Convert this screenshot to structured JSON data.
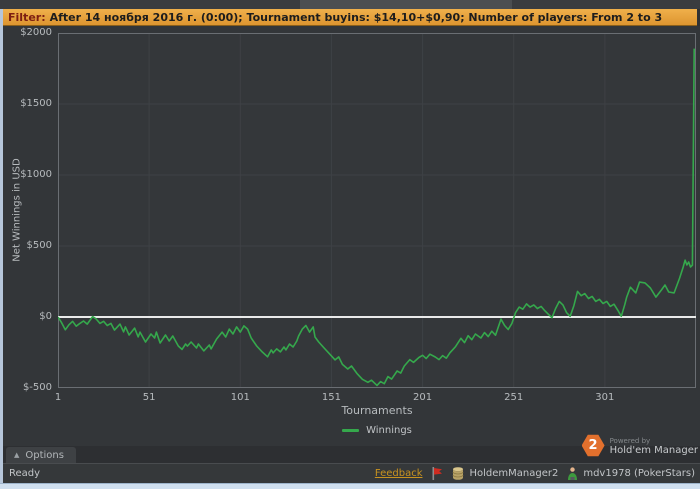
{
  "window": {
    "filter_bar": {
      "label": "Filter:",
      "text": "After 14 ноября 2016 г. (0:00); Tournament buyins: $14,10+$0,90; Number of players: From 2 to 3"
    },
    "options_button": {
      "label": "Options",
      "icon": "chevron-up-icon"
    },
    "powered_by": {
      "line1": "Powered by",
      "line2": "Hold'em Manager",
      "badge": "2",
      "badge_color": "#E2702D"
    },
    "status_bar": {
      "ready": "Ready",
      "feedback_link": "Feedback",
      "feedback_color": "#C9931F",
      "account_icon": "database-icon",
      "account": "HoldemManager2",
      "flag_icon": "red-flag-icon",
      "user_icon": "user-icon",
      "user": "mdv1978 (PokerStars)"
    }
  },
  "chart_data": {
    "type": "line",
    "title": "",
    "xlabel": "Tournaments",
    "ylabel": "Net Winnings in USD",
    "xlim": [
      1,
      351
    ],
    "ylim": [
      -500,
      2000
    ],
    "x_ticks": [
      1,
      51,
      101,
      151,
      201,
      251,
      301
    ],
    "y_ticks": [
      2000,
      1500,
      1000,
      500,
      0,
      -500
    ],
    "y_tick_labels": [
      "$2000",
      "$1500",
      "$1000",
      "$500",
      "$0",
      "$-500"
    ],
    "grid": true,
    "zero_line_color": "#E9EAEA",
    "grid_color": "#3E4145",
    "border_color": "#6A6E73",
    "plot_bg": "#34373A",
    "line_color": "#35A84C",
    "legend_position": "bottom",
    "series": [
      {
        "name": "Winnings",
        "points": [
          [
            1,
            0
          ],
          [
            3,
            -40
          ],
          [
            5,
            -90
          ],
          [
            7,
            -55
          ],
          [
            9,
            -30
          ],
          [
            11,
            -65
          ],
          [
            13,
            -45
          ],
          [
            15,
            -28
          ],
          [
            17,
            -50
          ],
          [
            20,
            3
          ],
          [
            22,
            -15
          ],
          [
            24,
            -45
          ],
          [
            26,
            -30
          ],
          [
            28,
            -60
          ],
          [
            30,
            -45
          ],
          [
            32,
            -92
          ],
          [
            35,
            -50
          ],
          [
            37,
            -105
          ],
          [
            38,
            -70
          ],
          [
            40,
            -127
          ],
          [
            43,
            -78
          ],
          [
            45,
            -140
          ],
          [
            46,
            -106
          ],
          [
            49,
            -176
          ],
          [
            52,
            -120
          ],
          [
            54,
            -148
          ],
          [
            55,
            -106
          ],
          [
            57,
            -183
          ],
          [
            60,
            -127
          ],
          [
            62,
            -169
          ],
          [
            64,
            -134
          ],
          [
            67,
            -204
          ],
          [
            69,
            -228
          ],
          [
            71,
            -190
          ],
          [
            72,
            -205
          ],
          [
            74,
            -176
          ],
          [
            77,
            -218
          ],
          [
            78,
            -190
          ],
          [
            81,
            -239
          ],
          [
            84,
            -197
          ],
          [
            85,
            -225
          ],
          [
            88,
            -155
          ],
          [
            91,
            -106
          ],
          [
            93,
            -141
          ],
          [
            95,
            -85
          ],
          [
            97,
            -120
          ],
          [
            99,
            -70
          ],
          [
            101,
            -106
          ],
          [
            103,
            -63
          ],
          [
            105,
            -85
          ],
          [
            107,
            -148
          ],
          [
            110,
            -204
          ],
          [
            113,
            -246
          ],
          [
            116,
            -280
          ],
          [
            118,
            -232
          ],
          [
            119,
            -253
          ],
          [
            121,
            -225
          ],
          [
            123,
            -246
          ],
          [
            125,
            -211
          ],
          [
            126,
            -232
          ],
          [
            128,
            -190
          ],
          [
            130,
            -211
          ],
          [
            132,
            -169
          ],
          [
            133,
            -134
          ],
          [
            135,
            -85
          ],
          [
            137,
            -60
          ],
          [
            139,
            -106
          ],
          [
            141,
            -70
          ],
          [
            142,
            -141
          ],
          [
            144,
            -176
          ],
          [
            147,
            -218
          ],
          [
            150,
            -260
          ],
          [
            153,
            -302
          ],
          [
            155,
            -281
          ],
          [
            157,
            -334
          ],
          [
            160,
            -366
          ],
          [
            162,
            -345
          ],
          [
            165,
            -397
          ],
          [
            168,
            -439
          ],
          [
            171,
            -460
          ],
          [
            173,
            -445
          ],
          [
            176,
            -482
          ],
          [
            178,
            -455
          ],
          [
            180,
            -470
          ],
          [
            182,
            -420
          ],
          [
            184,
            -437
          ],
          [
            187,
            -380
          ],
          [
            189,
            -395
          ],
          [
            191,
            -345
          ],
          [
            194,
            -300
          ],
          [
            196,
            -320
          ],
          [
            199,
            -285
          ],
          [
            201,
            -270
          ],
          [
            203,
            -292
          ],
          [
            205,
            -262
          ],
          [
            208,
            -282
          ],
          [
            210,
            -300
          ],
          [
            212,
            -272
          ],
          [
            214,
            -290
          ],
          [
            216,
            -252
          ],
          [
            219,
            -210
          ],
          [
            222,
            -150
          ],
          [
            224,
            -180
          ],
          [
            226,
            -132
          ],
          [
            228,
            -160
          ],
          [
            230,
            -120
          ],
          [
            233,
            -148
          ],
          [
            235,
            -110
          ],
          [
            237,
            -138
          ],
          [
            239,
            -100
          ],
          [
            241,
            -128
          ],
          [
            244,
            -15
          ],
          [
            246,
            -60
          ],
          [
            248,
            -88
          ],
          [
            250,
            -45
          ],
          [
            252,
            30
          ],
          [
            254,
            70
          ],
          [
            256,
            55
          ],
          [
            258,
            92
          ],
          [
            260,
            70
          ],
          [
            262,
            85
          ],
          [
            264,
            60
          ],
          [
            266,
            75
          ],
          [
            268,
            45
          ],
          [
            270,
            20
          ],
          [
            272,
            -5
          ],
          [
            274,
            60
          ],
          [
            276,
            110
          ],
          [
            278,
            85
          ],
          [
            280,
            30
          ],
          [
            282,
            5
          ],
          [
            284,
            80
          ],
          [
            286,
            180
          ],
          [
            288,
            150
          ],
          [
            290,
            165
          ],
          [
            292,
            130
          ],
          [
            294,
            145
          ],
          [
            296,
            110
          ],
          [
            298,
            125
          ],
          [
            300,
            95
          ],
          [
            302,
            110
          ],
          [
            304,
            75
          ],
          [
            306,
            90
          ],
          [
            308,
            50
          ],
          [
            310,
            5
          ],
          [
            312,
            90
          ],
          [
            313,
            140
          ],
          [
            315,
            210
          ],
          [
            318,
            170
          ],
          [
            320,
            246
          ],
          [
            323,
            240
          ],
          [
            326,
            204
          ],
          [
            329,
            140
          ],
          [
            332,
            190
          ],
          [
            334,
            225
          ],
          [
            336,
            176
          ],
          [
            339,
            170
          ],
          [
            342,
            274
          ],
          [
            344,
            352
          ],
          [
            345,
            400
          ],
          [
            346,
            366
          ],
          [
            347,
            387
          ],
          [
            348,
            352
          ],
          [
            349,
            365
          ],
          [
            350,
            1890
          ]
        ]
      }
    ]
  }
}
